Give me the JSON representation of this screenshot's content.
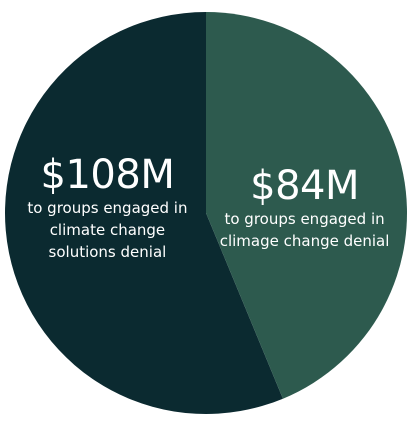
{
  "chart_data": {
    "type": "pie",
    "categories": [
      "to groups engaged in climate change solutions denial",
      "to groups engaged in climage change denial"
    ],
    "values": [
      108,
      84
    ],
    "value_labels": [
      "$108M",
      "$84M"
    ],
    "colors": [
      "#0b2a30",
      "#2d5a4e"
    ]
  }
}
